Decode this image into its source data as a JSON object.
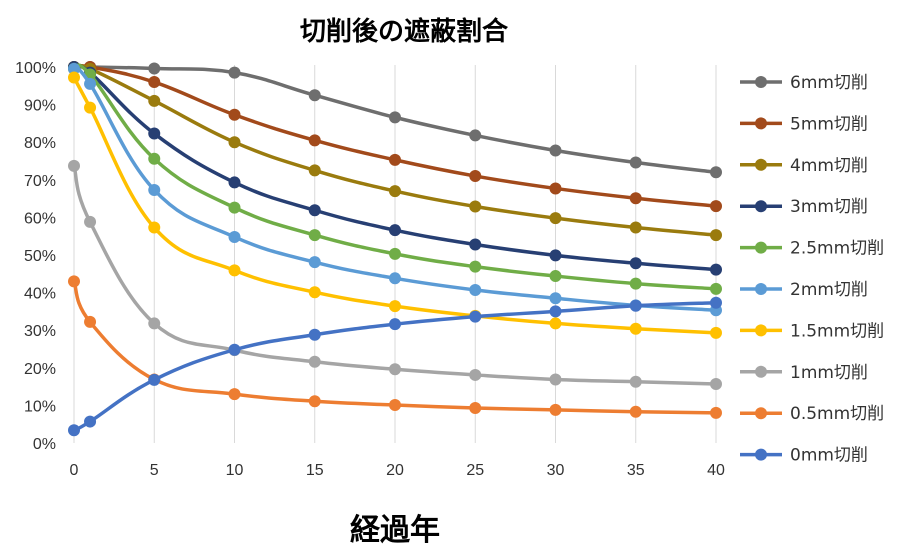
{
  "chart_data": {
    "type": "line",
    "title": "切削後の遮蔽割合",
    "xlabel": "経過年",
    "ylabel": "",
    "x": [
      0,
      1,
      5,
      10,
      15,
      20,
      25,
      30,
      35,
      40
    ],
    "x_ticks": [
      "0",
      "5",
      "10",
      "15",
      "20",
      "25",
      "30",
      "35",
      "40"
    ],
    "xlim": [
      0,
      40
    ],
    "ylim": [
      0,
      100
    ],
    "y_ticks": [
      "0%",
      "10%",
      "20%",
      "30%",
      "40%",
      "50%",
      "60%",
      "70%",
      "80%",
      "90%",
      "100%"
    ],
    "grid": "vertical",
    "legend_position": "right",
    "series": [
      {
        "name": "6mm切削",
        "color": "#6e6e6e",
        "values": [
          100,
          100,
          99.6,
          98.5,
          92.5,
          86.6,
          81.8,
          77.8,
          74.6,
          72
        ]
      },
      {
        "name": "5mm切削",
        "color": "#a24a1b",
        "values": [
          100,
          100,
          96,
          87.3,
          80.5,
          75.3,
          71,
          67.7,
          65.1,
          63
        ]
      },
      {
        "name": "4mm切削",
        "color": "#9a7b0e",
        "values": [
          100,
          99.5,
          91,
          80,
          72.5,
          67,
          62.9,
          59.8,
          57.3,
          55.3
        ]
      },
      {
        "name": "3mm切削",
        "color": "#273f73",
        "values": [
          100,
          98.5,
          82.3,
          69.3,
          61.9,
          56.6,
          52.8,
          49.9,
          47.8,
          46.1
        ]
      },
      {
        "name": "2.5mm切削",
        "color": "#70ad47",
        "values": [
          99.5,
          98,
          75.6,
          62.6,
          55.3,
          50.3,
          46.9,
          44.4,
          42.4,
          41
        ]
      },
      {
        "name": "2mm切削",
        "color": "#5b9bd5",
        "values": [
          99.5,
          95.5,
          67.3,
          54.8,
          48.1,
          43.8,
          40.7,
          38.5,
          36.6,
          35.3
        ]
      },
      {
        "name": "1.5mm切削",
        "color": "#ffc000",
        "values": [
          97.2,
          89.2,
          57.3,
          45.9,
          40.1,
          36.4,
          33.8,
          31.8,
          30.4,
          29.3
        ]
      },
      {
        "name": "1mm切削",
        "color": "#a5a5a5",
        "values": [
          73.7,
          58.8,
          31.8,
          24.7,
          21.6,
          19.6,
          18.1,
          16.9,
          16.3,
          15.7
        ]
      },
      {
        "name": "0.5mm切削",
        "color": "#ed7d31",
        "values": [
          43,
          32.2,
          16.9,
          13,
          11.1,
          10.1,
          9.3,
          8.8,
          8.3,
          8
        ]
      },
      {
        "name": "0mm切削",
        "color": "#4472c4",
        "values": [
          3.4,
          5.7,
          16.8,
          24.8,
          28.8,
          31.6,
          33.6,
          35,
          36.5,
          37.3
        ]
      }
    ]
  }
}
